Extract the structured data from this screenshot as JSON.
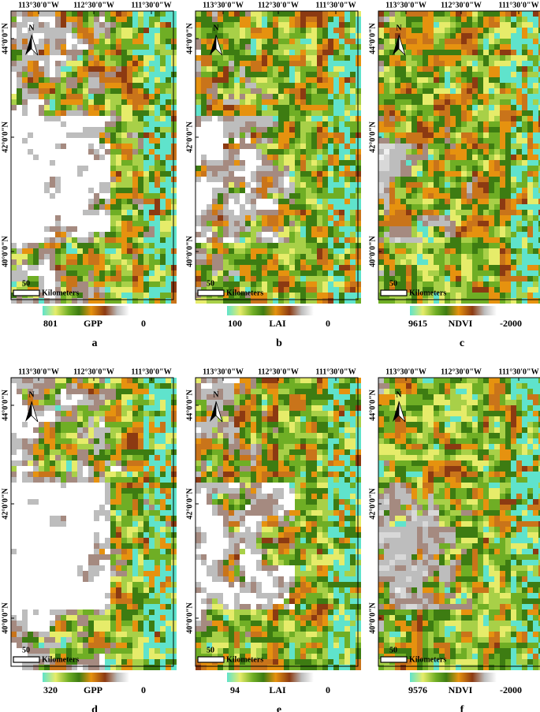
{
  "longitude_labels": [
    "113°30'0\"W",
    "112°30'0\"W",
    "111°30'0\"W"
  ],
  "latitude_labels": [
    "44°0'0\"N",
    "42°0'0\"N",
    "40°0'0\"N"
  ],
  "north": "N",
  "scale": {
    "value": 50,
    "unit": "Kilometers"
  },
  "panels": [
    {
      "letter": "a",
      "legend": {
        "max": 801,
        "variable": "GPP",
        "min": 0
      }
    },
    {
      "letter": "b",
      "legend": {
        "max": 100,
        "variable": "LAI",
        "min": 0
      }
    },
    {
      "letter": "c",
      "legend": {
        "max": 9615,
        "variable": "NDVI",
        "min": -2000
      }
    },
    {
      "letter": "d",
      "legend": {
        "max": 320,
        "variable": "GPP",
        "min": 0
      }
    },
    {
      "letter": "e",
      "legend": {
        "max": 94,
        "variable": "LAI",
        "min": 0
      }
    },
    {
      "letter": "f",
      "legend": {
        "max": 9576,
        "variable": "NDVI",
        "min": -2000
      }
    }
  ]
}
